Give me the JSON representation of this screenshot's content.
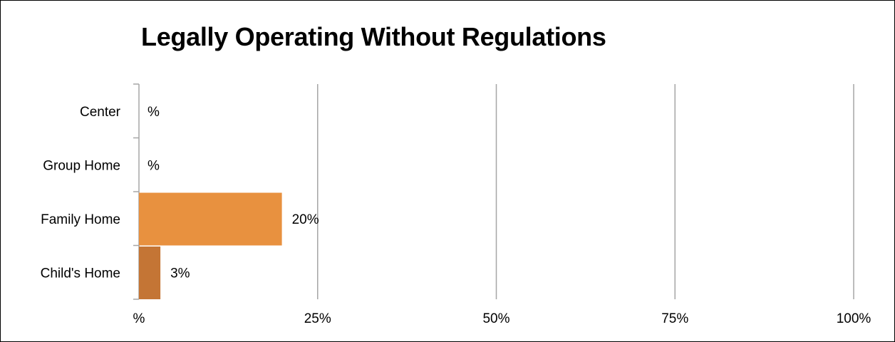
{
  "chart_data": {
    "type": "bar",
    "orientation": "horizontal",
    "title": "Legally Operating Without Regulations",
    "categories": [
      "Center",
      "Group Home",
      "Family Home",
      "Child's Home"
    ],
    "values": [
      0,
      0,
      20,
      3
    ],
    "data_labels": [
      "%",
      "%",
      "20%",
      "3%"
    ],
    "bar_colors": [
      "#E8913F",
      "#E8913F",
      "#E8913F",
      "#C47535"
    ],
    "xlim": [
      0,
      100
    ],
    "x_ticks": [
      0,
      25,
      50,
      75,
      100
    ],
    "x_tick_labels": [
      "%",
      "25%",
      "50%",
      "75%",
      "100%"
    ],
    "xlabel": "",
    "ylabel": "",
    "grid": true,
    "grid_color": "#A6A6A6",
    "legend": "none"
  }
}
